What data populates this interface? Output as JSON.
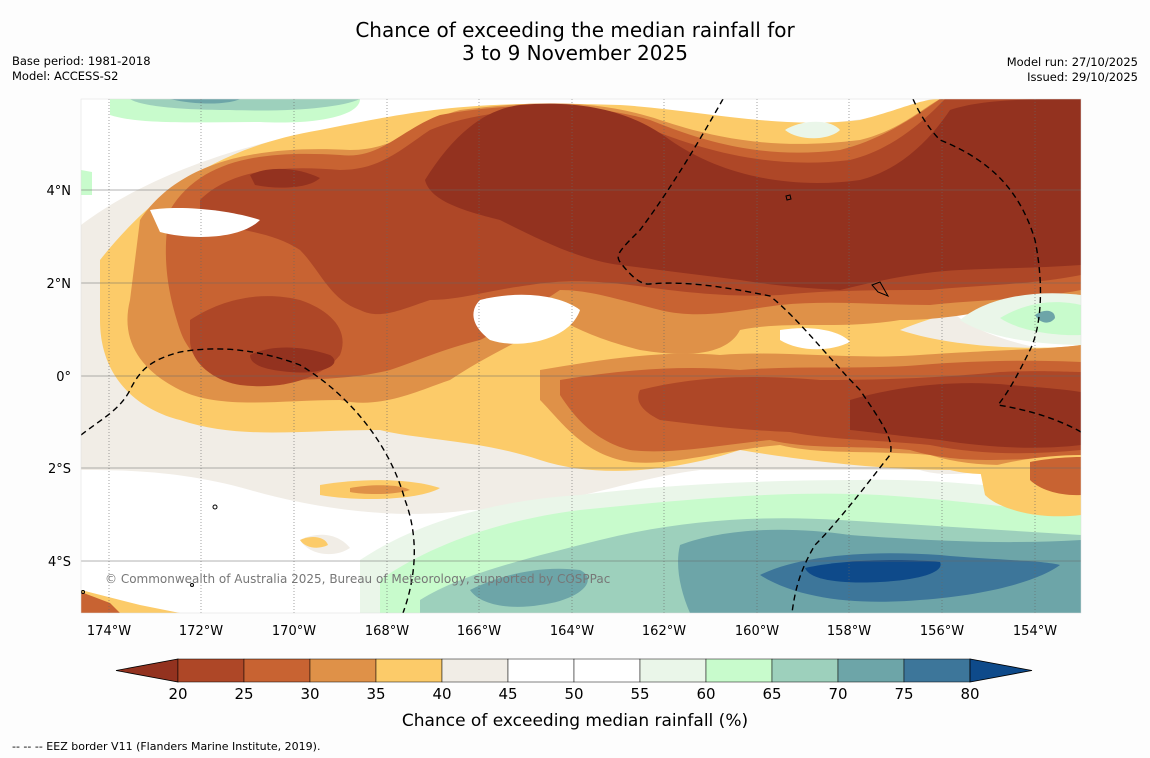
{
  "title": {
    "line1": "Chance of exceeding the median rainfall for",
    "line2": "3 to 9 November 2025"
  },
  "meta_left": {
    "base_period": "Base period: 1981-2018",
    "model": "Model: ACCESS-S2"
  },
  "meta_right": {
    "model_run": "Model run: 27/10/2025",
    "issued": "Issued: 29/10/2025"
  },
  "map": {
    "lon_labels": [
      "174°W",
      "172°W",
      "170°W",
      "168°W",
      "166°W",
      "164°W",
      "162°W",
      "160°W",
      "158°W",
      "156°W",
      "154°W"
    ],
    "lat_labels": [
      "4°N",
      "2°N",
      "0°",
      "2°S",
      "4°S"
    ],
    "copyright": "© Commonwealth of Australia 2025, Bureau of Meteorology, supported by COSPPac"
  },
  "colorbar": {
    "ticks": [
      "20",
      "25",
      "30",
      "35",
      "40",
      "45",
      "50",
      "55",
      "60",
      "65",
      "70",
      "75",
      "80"
    ],
    "colors": [
      "#93321f",
      "#ae4727",
      "#c86332",
      "#df9148",
      "#fccb69",
      "#f1ede6",
      "#ffffff",
      "#ffffff",
      "#eaf6e9",
      "#c8fbcc",
      "#9dd0bc",
      "#6da5a8",
      "#3d769a",
      "#0e4a8a"
    ],
    "label": "Chance of exceeding median rainfall (%)"
  },
  "footnote": "--  --  -- EEZ border V11 (Flanders Marine Institute, 2019)."
}
